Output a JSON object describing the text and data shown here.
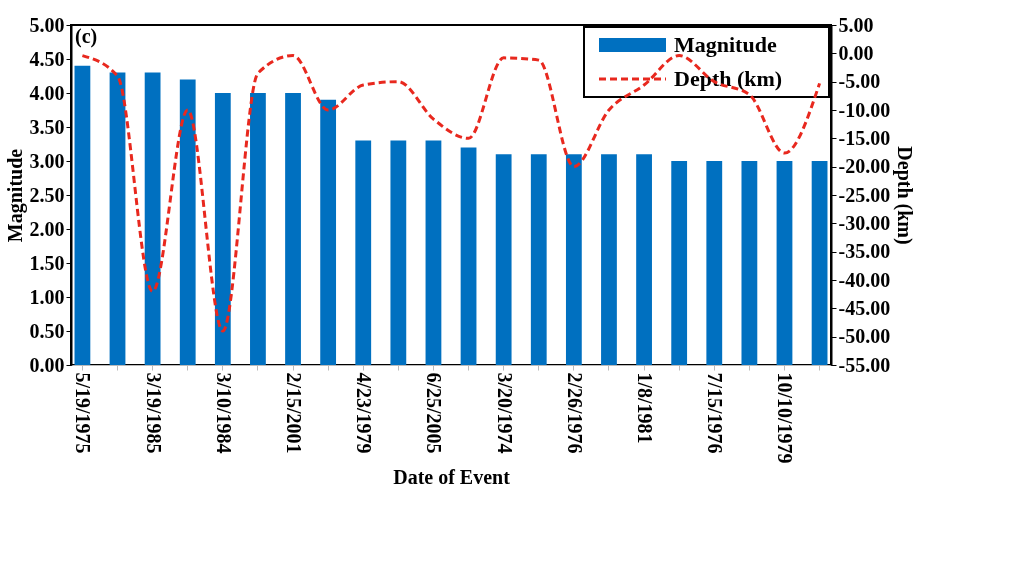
{
  "chart_data": {
    "type": "bar",
    "xlabel": "Date of Event",
    "ylabel": "Magnitude",
    "y2label": "Depth (km)",
    "annotations": [
      "(c)"
    ],
    "categories": [
      "5/19/1975",
      null,
      "3/19/1985",
      null,
      "3/10/1984",
      null,
      "2/15/2001",
      null,
      "4/23/1979",
      null,
      "6/25/2005",
      null,
      "3/20/1974",
      null,
      "2/26/1976",
      null,
      "1/8/1981",
      null,
      "7/15/1976",
      null,
      "10/10/1979",
      null
    ],
    "series": [
      {
        "name": "Magnitude",
        "color": "#0070c0",
        "values": [
          4.4,
          4.3,
          4.3,
          4.2,
          4.0,
          4.0,
          4.0,
          3.9,
          3.3,
          3.3,
          3.3,
          3.2,
          3.1,
          3.1,
          3.1,
          3.1,
          3.1,
          3.0,
          3.0,
          3.0,
          3.0,
          3.0
        ]
      },
      {
        "name": "Depth (km)",
        "type": "line",
        "axis": "y2",
        "color": "#e8281e",
        "line_style": "dashed",
        "values": [
          -0.4,
          -4,
          -42,
          -10,
          -49,
          -3.5,
          -0.4,
          -10,
          -5.6,
          -5,
          -11.6,
          -15,
          -0.8,
          -1.2,
          -20,
          -10,
          -5.6,
          -0.4,
          -5,
          -7.3,
          -17.6,
          -5.3
        ]
      }
    ],
    "ylim": [
      0,
      5
    ],
    "yticks": [
      {
        "value": 0,
        "label": "0.00"
      },
      {
        "value": 0.5,
        "label": "0.50"
      },
      {
        "value": 1,
        "label": "1.00"
      },
      {
        "value": 1.5,
        "label": "1.50"
      },
      {
        "value": 2,
        "label": "2.00"
      },
      {
        "value": 2.5,
        "label": "2.50"
      },
      {
        "value": 3,
        "label": "3.00"
      },
      {
        "value": 3.5,
        "label": "3.50"
      },
      {
        "value": 4,
        "label": "4.00"
      },
      {
        "value": 4.5,
        "label": "4.50"
      },
      {
        "value": 5,
        "label": "5.00"
      }
    ],
    "y2lim": [
      -55,
      5
    ],
    "y2ticks": [
      {
        "value": 5,
        "label": "5.00"
      },
      {
        "value": 0,
        "label": "0.00"
      },
      {
        "value": -5,
        "label": "-5.00"
      },
      {
        "value": -10,
        "label": "-10.00"
      },
      {
        "value": -15,
        "label": "-15.00"
      },
      {
        "value": -20,
        "label": "-20.00"
      },
      {
        "value": -25,
        "label": "-25.00"
      },
      {
        "value": -30,
        "label": "-30.00"
      },
      {
        "value": -35,
        "label": "-35.00"
      },
      {
        "value": -40,
        "label": "-40.00"
      },
      {
        "value": -45,
        "label": "-45.00"
      },
      {
        "value": -50,
        "label": "-50.00"
      },
      {
        "value": -55,
        "label": "-55.00"
      }
    ],
    "legend": "top right"
  }
}
